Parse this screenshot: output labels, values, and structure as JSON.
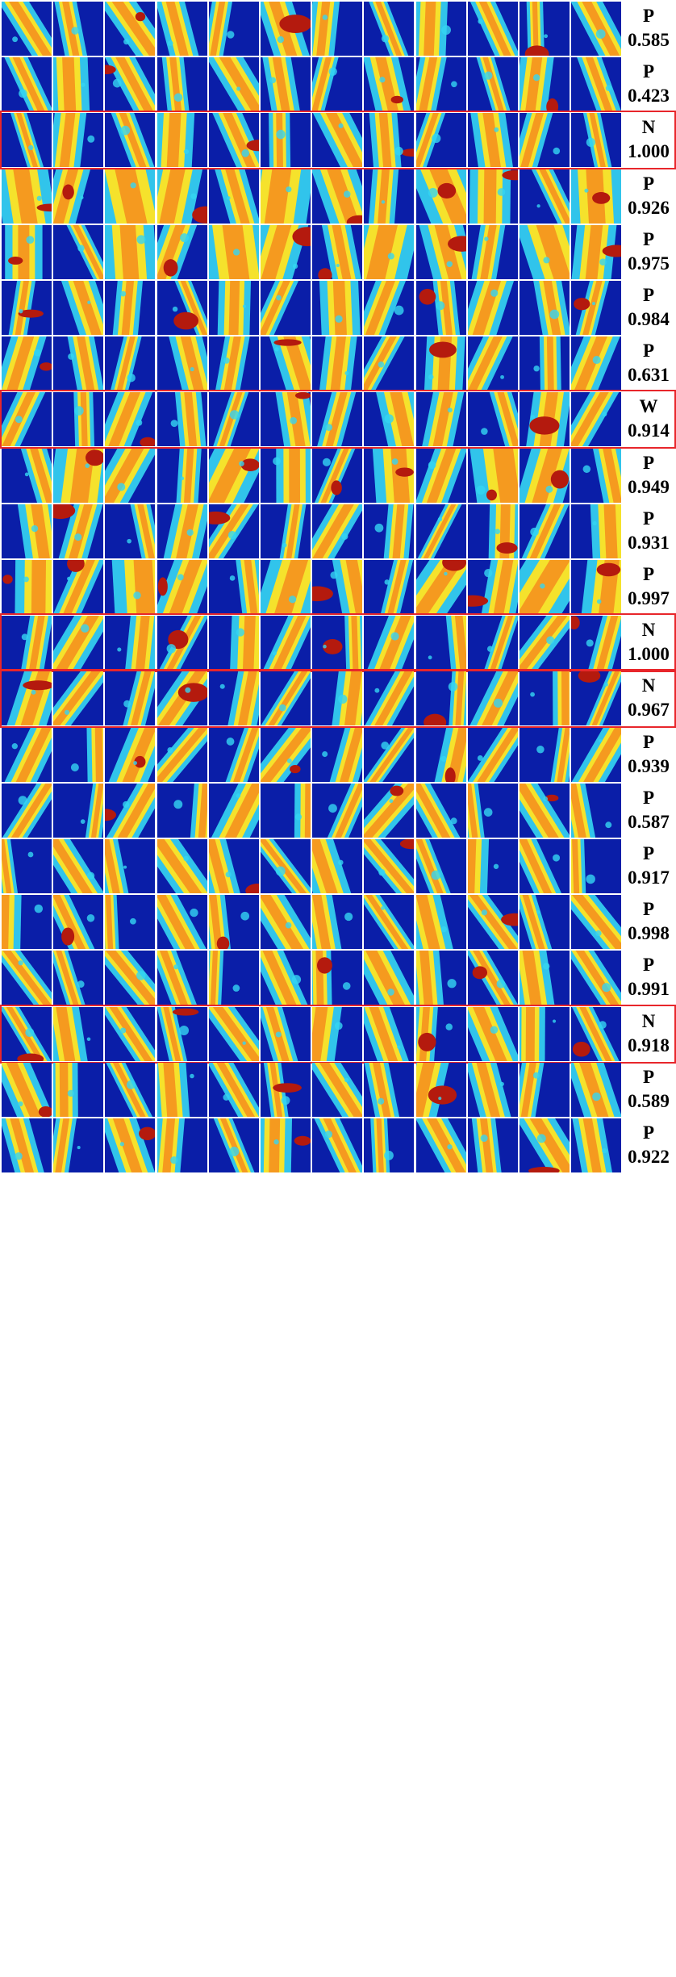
{
  "colors": {
    "highlight": "#e8262b",
    "blue": "#0a1ea8",
    "cyan": "#35d6f2",
    "yellow": "#f5e22c",
    "orange": "#f59a1f",
    "red": "#b41a0e"
  },
  "rows": [
    {
      "label": "P",
      "score": "0.585",
      "highlighted": false
    },
    {
      "label": "P",
      "score": "0.423",
      "highlighted": false
    },
    {
      "label": "N",
      "score": "1.000",
      "highlighted": true
    },
    {
      "label": "P",
      "score": "0.926",
      "highlighted": false
    },
    {
      "label": "P",
      "score": "0.975",
      "highlighted": false
    },
    {
      "label": "P",
      "score": "0.984",
      "highlighted": false
    },
    {
      "label": "P",
      "score": "0.631",
      "highlighted": false
    },
    {
      "label": "W",
      "score": "0.914",
      "highlighted": true
    },
    {
      "label": "P",
      "score": "0.949",
      "highlighted": false
    },
    {
      "label": "P",
      "score": "0.931",
      "highlighted": false
    },
    {
      "label": "P",
      "score": "0.997",
      "highlighted": false
    },
    {
      "label": "N",
      "score": "1.000",
      "highlighted": true
    },
    {
      "label": "N",
      "score": "0.967",
      "highlighted": true
    },
    {
      "label": "P",
      "score": "0.939",
      "highlighted": false
    },
    {
      "label": "P",
      "score": "0.587",
      "highlighted": false
    },
    {
      "label": "P",
      "score": "0.917",
      "highlighted": false
    },
    {
      "label": "P",
      "score": "0.998",
      "highlighted": false
    },
    {
      "label": "P",
      "score": "0.991",
      "highlighted": false
    },
    {
      "label": "N",
      "score": "0.918",
      "highlighted": true
    },
    {
      "label": "P",
      "score": "0.589",
      "highlighted": false
    },
    {
      "label": "P",
      "score": "0.922",
      "highlighted": false
    }
  ]
}
